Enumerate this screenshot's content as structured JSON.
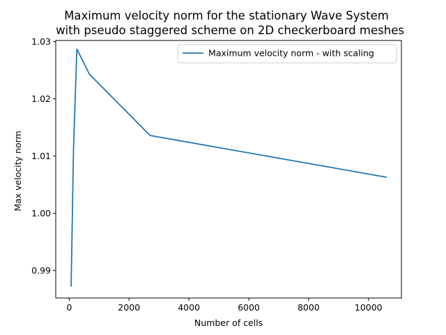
{
  "chart_data": {
    "type": "line",
    "title": "Maximum velocity norm for the stationary Wave System",
    "subtitle": "with pseudo staggered scheme on 2D checkerboard meshes",
    "xlabel": "Number of cells",
    "ylabel": "Max velocity norm",
    "xlim": [
      -450,
      11100
    ],
    "ylim": [
      0.9852,
      1.0302
    ],
    "xticks": [
      0,
      2000,
      4000,
      6000,
      8000,
      10000
    ],
    "xtick_labels": [
      "0",
      "2000",
      "4000",
      "6000",
      "8000",
      "10000"
    ],
    "yticks": [
      0.99,
      1.0,
      1.01,
      1.02,
      1.03
    ],
    "ytick_labels": [
      "0.99",
      "1.00",
      "1.01",
      "1.02",
      "1.03"
    ],
    "grid": false,
    "legend_position": "top-right",
    "series": [
      {
        "name": "Maximum velocity norm - with scaling",
        "color": "#1f77b4",
        "x": [
          64,
          144,
          256,
          676,
          2704,
          10609
        ],
        "y": [
          0.9872,
          1.0113,
          1.0287,
          1.0243,
          1.0136,
          1.0063
        ]
      }
    ]
  }
}
